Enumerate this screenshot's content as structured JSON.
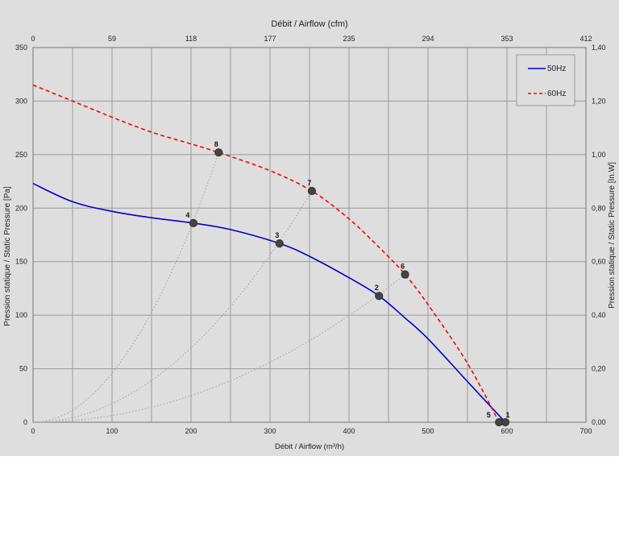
{
  "chart_data": {
    "type": "line",
    "xlabel_bottom": "Débit / Airflow (m³/h)",
    "xlabel_top": "Débit / Airflow (cfm)",
    "ylabel_left": "Pression statique / Static Pressure [Pa]",
    "ylabel_right": "Pression statique / Static Pressure [In.W]",
    "xlim": [
      0,
      700
    ],
    "ylim": [
      0,
      350
    ],
    "x_ticks": [
      "0",
      "100",
      "200",
      "300",
      "400",
      "500",
      "600",
      "700"
    ],
    "y_ticks": [
      "0",
      "50",
      "100",
      "150",
      "200",
      "250",
      "300",
      "350"
    ],
    "top_ticks": [
      "0",
      "59",
      "118",
      "177",
      "235",
      "294",
      "353",
      "412"
    ],
    "right_ticks": [
      "0,00",
      "0,20",
      "0,40",
      "0,60",
      "0,80",
      "1,00",
      "1,20",
      "1,40"
    ],
    "grid": true,
    "legend_position": "top-right",
    "series": [
      {
        "name": "50Hz",
        "color": "#0000cc",
        "dash": "solid",
        "x": [
          0,
          50,
          100,
          150,
          203,
          250,
          312,
          350,
          400,
          438,
          470,
          500,
          550,
          598
        ],
        "y": [
          223,
          206,
          197,
          191,
          186,
          180,
          167,
          155,
          135,
          118,
          98,
          78,
          38,
          0
        ]
      },
      {
        "name": "60Hz",
        "color": "#ff0000",
        "dash": "dashed",
        "x": [
          0,
          50,
          100,
          150,
          200,
          235,
          300,
          353,
          400,
          440,
          471,
          500,
          550,
          590
        ],
        "y": [
          315,
          300,
          285,
          271,
          260,
          252,
          235,
          216,
          190,
          162,
          138,
          110,
          55,
          0
        ]
      }
    ],
    "points": [
      {
        "label": "1",
        "x": 598,
        "y": 0
      },
      {
        "label": "2",
        "x": 438,
        "y": 118
      },
      {
        "label": "3",
        "x": 312,
        "y": 167
      },
      {
        "label": "4",
        "x": 203,
        "y": 186
      },
      {
        "label": "5",
        "x": 590,
        "y": 0
      },
      {
        "label": "6",
        "x": 471,
        "y": 138
      },
      {
        "label": "7",
        "x": 353,
        "y": 216
      },
      {
        "label": "8",
        "x": 235,
        "y": 252
      }
    ],
    "system_curves": [
      {
        "x_end": 235,
        "y_end": 252
      },
      {
        "x_end": 353,
        "y_end": 216
      },
      {
        "x_end": 471,
        "y_end": 138
      }
    ]
  }
}
